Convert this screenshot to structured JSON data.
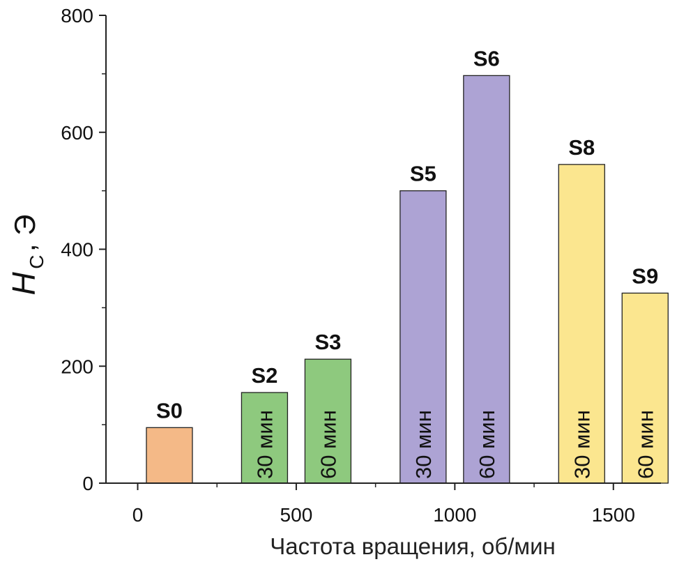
{
  "chart_data": {
    "type": "bar",
    "xlabel": "Частота вращения, об/мин",
    "ylabel_main": "H",
    "ylabel_sub": "C",
    "ylabel_unit": ", Э",
    "xlim": [
      -100,
      1650
    ],
    "ylim": [
      0,
      800
    ],
    "xticks": [
      0,
      500,
      1000,
      1500
    ],
    "xtick_labels": [
      "0",
      "500",
      "1000",
      "1500"
    ],
    "yticks": [
      0,
      200,
      400,
      600,
      800
    ],
    "ytick_labels": [
      "0",
      "200",
      "400",
      "600",
      "800"
    ],
    "grid": false,
    "bars": [
      {
        "label": "S0",
        "x": 100,
        "value": 95,
        "inner_label": "",
        "color": "#f4b987"
      },
      {
        "label": "S2",
        "x": 400,
        "value": 155,
        "inner_label": "30 мин",
        "color": "#8ec97e"
      },
      {
        "label": "S3",
        "x": 600,
        "value": 212,
        "inner_label": "60 мин",
        "color": "#8ec97e"
      },
      {
        "label": "S5",
        "x": 900,
        "value": 500,
        "inner_label": "30 мин",
        "color": "#ada3d4"
      },
      {
        "label": "S6",
        "x": 1100,
        "value": 697,
        "inner_label": "60 мин",
        "color": "#ada3d4"
      },
      {
        "label": "S8",
        "x": 1400,
        "value": 545,
        "inner_label": "30 мин",
        "color": "#fbe68f"
      },
      {
        "label": "S9",
        "x": 1600,
        "value": 325,
        "inner_label": "60 мин",
        "color": "#fbe68f"
      }
    ]
  }
}
